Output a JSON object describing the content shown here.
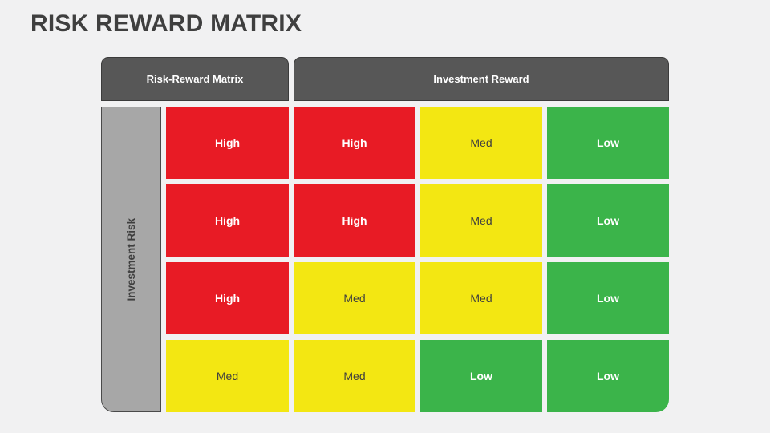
{
  "slide": {
    "title": "RISK REWARD MATRIX"
  },
  "matrix": {
    "corner_header": "Risk-Reward Matrix",
    "reward_header": "Investment Reward",
    "risk_header": "Investment Risk",
    "rows": [
      {
        "cells": [
          {
            "label": "High",
            "level": "high"
          },
          {
            "label": "High",
            "level": "high"
          },
          {
            "label": "Med",
            "level": "med"
          },
          {
            "label": "Low",
            "level": "low"
          }
        ]
      },
      {
        "cells": [
          {
            "label": "High",
            "level": "high"
          },
          {
            "label": "High",
            "level": "high"
          },
          {
            "label": "Med",
            "level": "med"
          },
          {
            "label": "Low",
            "level": "low"
          }
        ]
      },
      {
        "cells": [
          {
            "label": "High",
            "level": "high"
          },
          {
            "label": "Med",
            "level": "med"
          },
          {
            "label": "Med",
            "level": "med"
          },
          {
            "label": "Low",
            "level": "low"
          }
        ]
      },
      {
        "cells": [
          {
            "label": "Med",
            "level": "med"
          },
          {
            "label": "Med",
            "level": "med"
          },
          {
            "label": "Low",
            "level": "low"
          },
          {
            "label": "Low",
            "level": "low"
          }
        ]
      }
    ]
  },
  "colors": {
    "background": "#f1f1f2",
    "title_text": "#3f3f3f",
    "header_fill": "#575757",
    "header_border": "#3b3b3b",
    "header_text": "#ffffff",
    "risk_column_fill": "#a7a7a7",
    "risk_column_border": "#4a4a4a",
    "risk_column_text": "#3f3f3f",
    "high_cell": "#e81b25",
    "med_cell": "#f3e712",
    "low_cell": "#3bb44a",
    "med_text": "#3f3f3f",
    "high_low_text": "#ffffff"
  }
}
